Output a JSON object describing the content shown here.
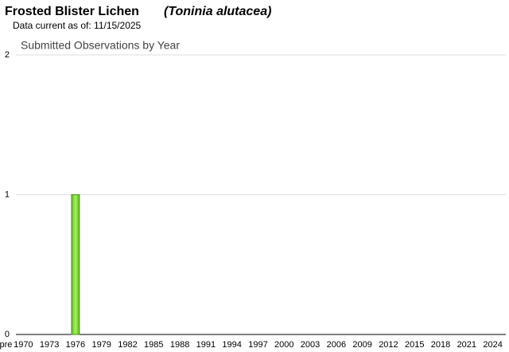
{
  "chart_data": {
    "type": "bar",
    "title": "Frosted Blister Lichen",
    "scientific_name": "(Toninia alutacea)",
    "subtitle": "Data current as of: 11/15/2025",
    "chart_title": "Submitted Observations by Year",
    "categories": [
      "pre",
      null,
      "1970",
      null,
      null,
      "1973",
      null,
      null,
      "1976",
      null,
      null,
      "1979",
      null,
      null,
      "1982",
      null,
      null,
      "1985",
      null,
      null,
      "1988",
      null,
      null,
      "1991",
      null,
      null,
      "1994",
      null,
      null,
      "1997",
      null,
      null,
      "2000",
      null,
      null,
      "2003",
      null,
      null,
      "2006",
      null,
      null,
      "2009",
      null,
      null,
      "2012",
      null,
      null,
      "2015",
      null,
      null,
      "2018",
      null,
      null,
      "2021",
      null,
      null,
      "2024",
      null
    ],
    "values": [
      0,
      0,
      0,
      0,
      0,
      0,
      0,
      0,
      1,
      0,
      0,
      0,
      0,
      0,
      0,
      0,
      0,
      0,
      0,
      0,
      0,
      0,
      0,
      0,
      0,
      0,
      0,
      0,
      0,
      0,
      0,
      0,
      0,
      0,
      0,
      0,
      0,
      0,
      0,
      0,
      0,
      0,
      0,
      0,
      0,
      0,
      0,
      0,
      0,
      0,
      0,
      0,
      0,
      0,
      0,
      0,
      0,
      0
    ],
    "color": "#7ddc3c",
    "ylim": [
      0,
      2
    ],
    "yticks": [
      0,
      1,
      2
    ],
    "grid": true
  }
}
